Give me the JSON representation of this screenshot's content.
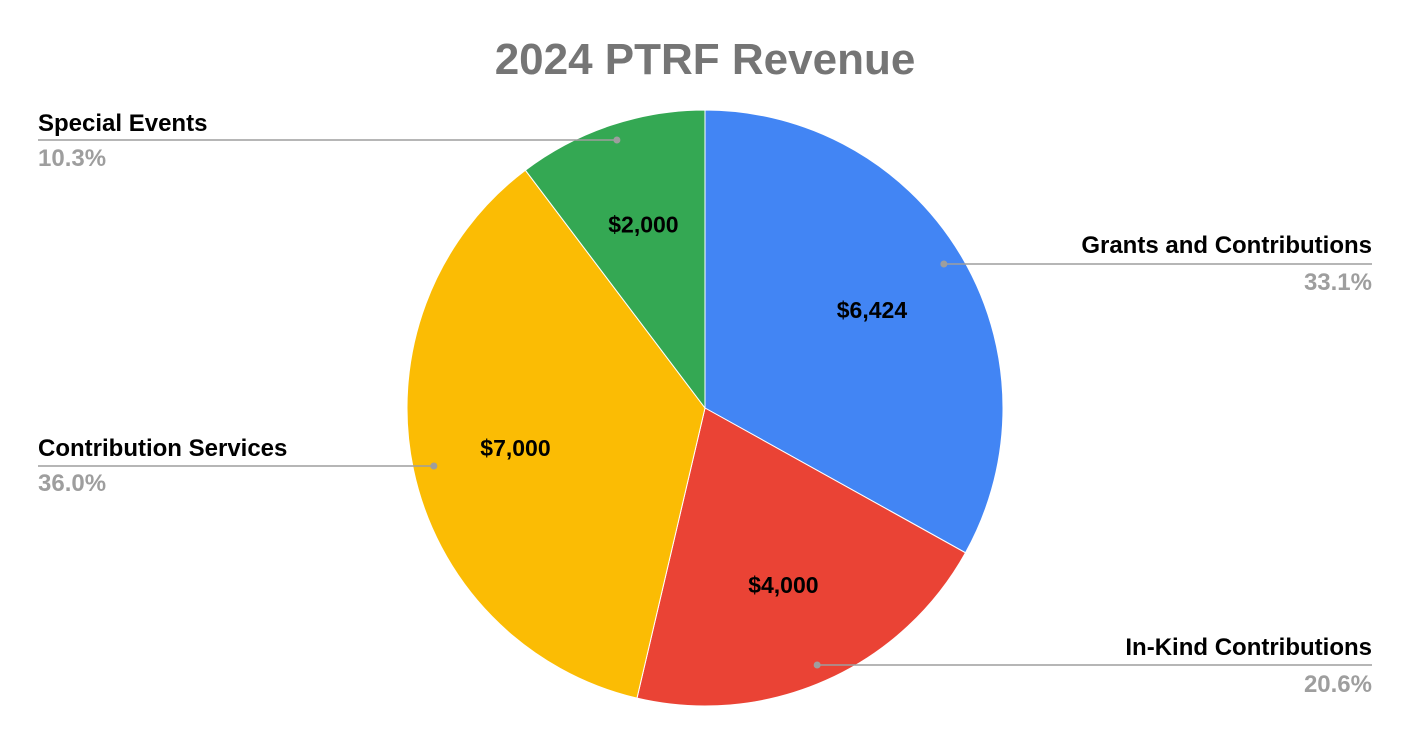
{
  "chart_data": {
    "type": "pie",
    "title": "2024 PTRF Revenue",
    "slices": [
      {
        "name": "Grants and Contributions",
        "value": 6424,
        "value_label": "$6,424",
        "percent_label": "33.1%",
        "color": "#4285F4"
      },
      {
        "name": "In-Kind Contributions",
        "value": 4000,
        "value_label": "$4,000",
        "percent_label": "20.6%",
        "color": "#EA4335"
      },
      {
        "name": "Contribution Services",
        "value": 7000,
        "value_label": "$7,000",
        "percent_label": "36.0%",
        "color": "#FBBC04"
      },
      {
        "name": "Special Events",
        "value": 2000,
        "value_label": "$2,000",
        "percent_label": "10.3%",
        "color": "#34A853"
      }
    ],
    "legend": "labeled-callouts",
    "colors": {
      "title": "#757575",
      "label_text": "#000000",
      "percent_text": "#9E9E9E",
      "leader_line": "#9E9E9E"
    }
  }
}
